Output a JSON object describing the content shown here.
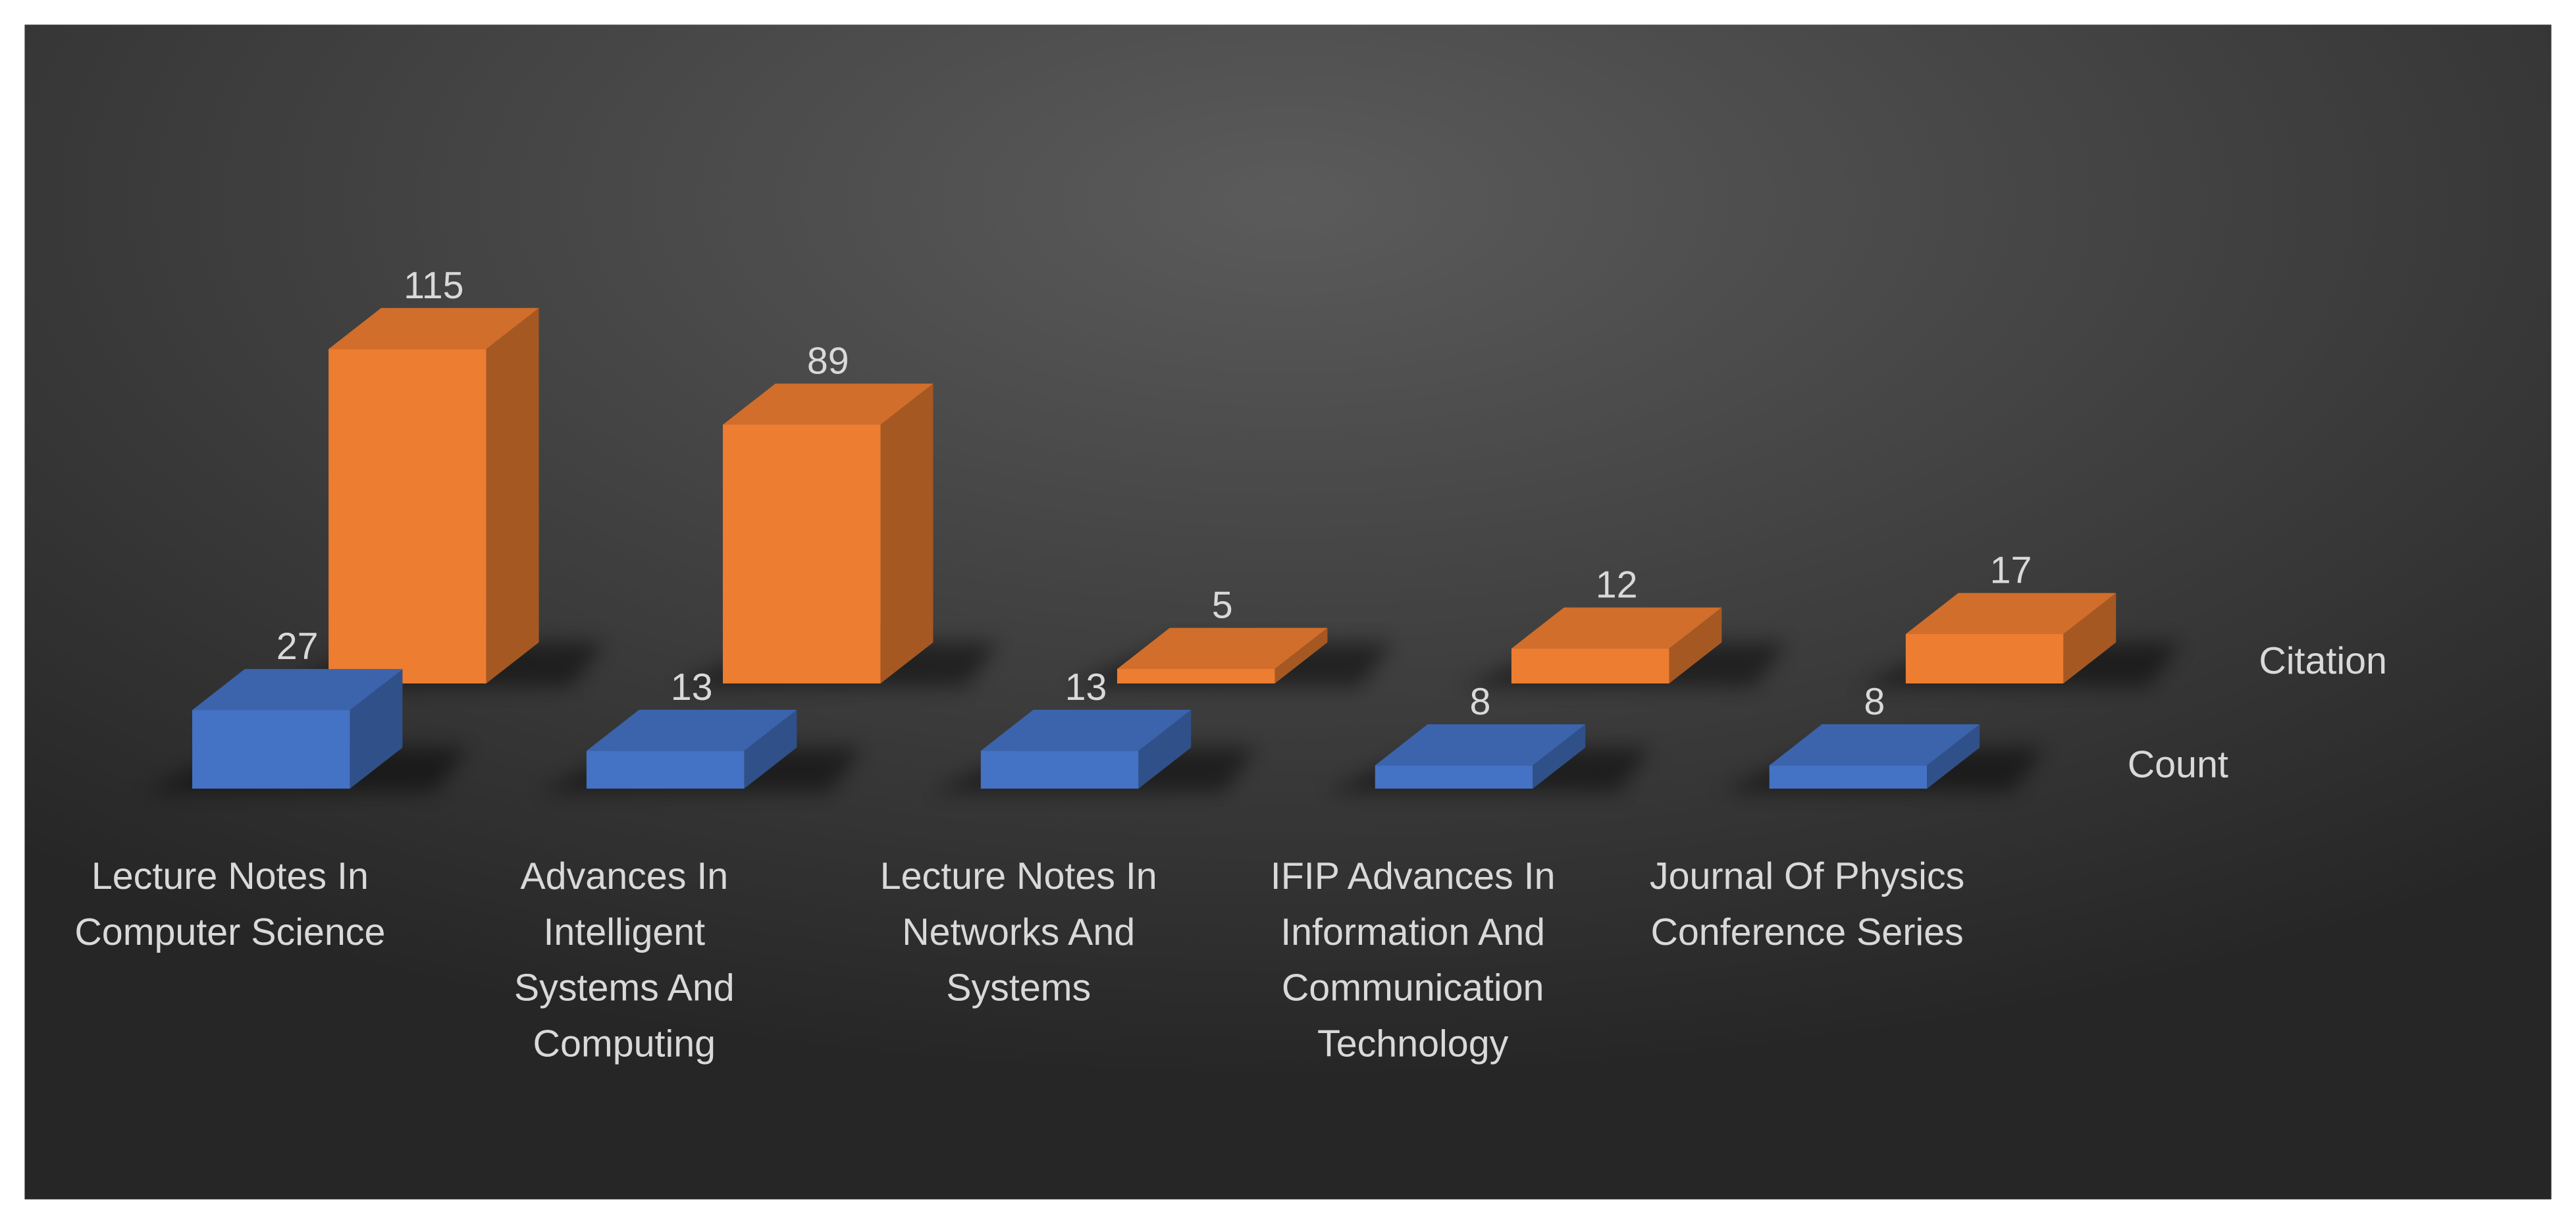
{
  "chart_data": {
    "type": "bar",
    "categories": [
      "Lecture Notes In Computer Science",
      "Advances In Intelligent Systems And Computing",
      "Lecture Notes In Networks And Systems",
      "IFIP Advances In Information And Communication Technology",
      "Journal Of Physics Conference Series"
    ],
    "series": [
      {
        "name": "Count",
        "color": "#4472c4",
        "values": [
          27,
          13,
          13,
          8,
          8
        ]
      },
      {
        "name": "Citation",
        "color": "#ed7d31",
        "values": [
          115,
          89,
          5,
          12,
          17
        ]
      }
    ]
  }
}
